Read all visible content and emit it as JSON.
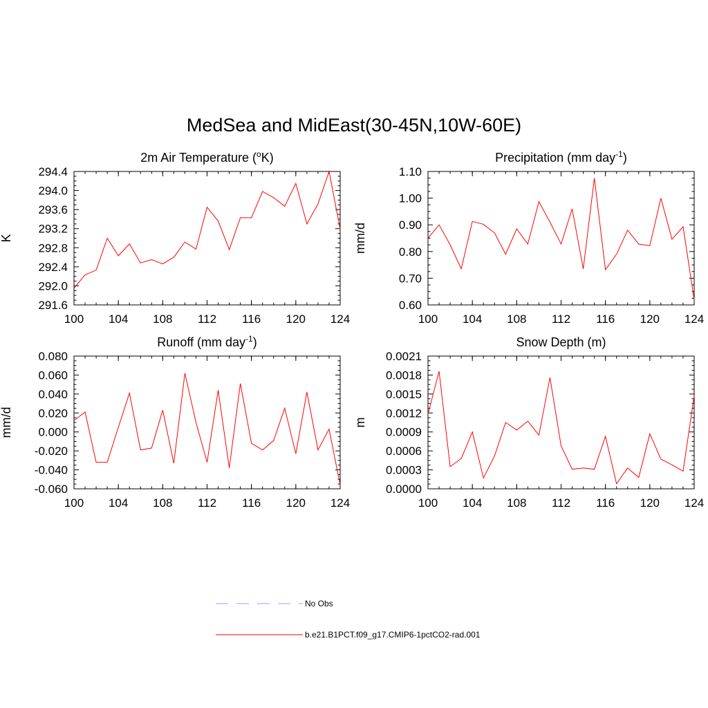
{
  "title": "MedSea and MidEast(30-45N,10W-60E)",
  "colors": {
    "model_line": "#ff0000",
    "obs_line": "#9999ff",
    "axis": "#000000"
  },
  "legend": {
    "items": [
      {
        "label": "No Obs",
        "style": "dashed",
        "color": "#9999ff"
      },
      {
        "label": "b.e21.B1PCT.f09_g17.CMIP6-1pctCO2-rad.001",
        "style": "solid",
        "color": "#ff0000"
      }
    ]
  },
  "chart_data": [
    {
      "type": "line",
      "title": "2m Air Temperature (°K)",
      "title_base": "2m Air Temperature (",
      "title_sup": "o",
      "title_tail": "K)",
      "xlabel": "",
      "ylabel": "K",
      "xlim": [
        100,
        124
      ],
      "ylim": [
        291.6,
        294.4
      ],
      "xticks": [
        "100",
        "104",
        "108",
        "112",
        "116",
        "120",
        "124"
      ],
      "yticks": [
        "291.6",
        "292.0",
        "292.4",
        "292.8",
        "293.2",
        "293.6",
        "294.0",
        "294.4"
      ],
      "x": [
        100,
        101,
        102,
        103,
        104,
        105,
        106,
        107,
        108,
        109,
        110,
        111,
        112,
        113,
        114,
        115,
        116,
        117,
        118,
        119,
        120,
        121,
        122,
        123,
        124
      ],
      "series": [
        {
          "name": "b.e21.B1PCT.f09_g17.CMIP6-1pctCO2-rad.001",
          "values": [
            291.95,
            292.23,
            292.33,
            293.0,
            292.63,
            292.88,
            292.48,
            292.55,
            292.46,
            292.6,
            292.92,
            292.77,
            293.65,
            293.36,
            292.76,
            293.43,
            293.43,
            293.98,
            293.85,
            293.67,
            294.15,
            293.3,
            293.72,
            294.4,
            293.19
          ]
        }
      ]
    },
    {
      "type": "line",
      "title": "Precipitation (mm day-1)",
      "title_base": "Precipitation (mm day",
      "title_sup": "-1",
      "title_tail": ")",
      "xlabel": "",
      "ylabel": "mm/d",
      "xlim": [
        100,
        124
      ],
      "ylim": [
        0.6,
        1.1
      ],
      "xticks": [
        "100",
        "104",
        "108",
        "112",
        "116",
        "120",
        "124"
      ],
      "yticks": [
        "0.60",
        "0.70",
        "0.80",
        "0.90",
        "1.00",
        "1.10"
      ],
      "x": [
        100,
        101,
        102,
        103,
        104,
        105,
        106,
        107,
        108,
        109,
        110,
        111,
        112,
        113,
        114,
        115,
        116,
        117,
        118,
        119,
        120,
        121,
        122,
        123,
        124
      ],
      "series": [
        {
          "name": "b.e21.B1PCT.f09_g17.CMIP6-1pctCO2-rad.001",
          "values": [
            0.85,
            0.9,
            0.825,
            0.735,
            0.913,
            0.902,
            0.87,
            0.79,
            0.885,
            0.828,
            0.987,
            0.91,
            0.828,
            0.96,
            0.735,
            1.075,
            0.732,
            0.79,
            0.88,
            0.828,
            0.822,
            1.0,
            0.846,
            0.893,
            0.62
          ]
        }
      ]
    },
    {
      "type": "line",
      "title": "Runoff (mm day-1)",
      "title_base": "Runoff (mm day",
      "title_sup": "-1",
      "title_tail": ")",
      "xlabel": "",
      "ylabel": "mm/d",
      "xlim": [
        100,
        124
      ],
      "ylim": [
        -0.06,
        0.08
      ],
      "xticks": [
        "100",
        "104",
        "108",
        "112",
        "116",
        "120",
        "124"
      ],
      "yticks": [
        "-0.060",
        "-0.040",
        "-0.020",
        "0.000",
        "0.020",
        "0.040",
        "0.060",
        "0.080"
      ],
      "x": [
        100,
        101,
        102,
        103,
        104,
        105,
        106,
        107,
        108,
        109,
        110,
        111,
        112,
        113,
        114,
        115,
        116,
        117,
        118,
        119,
        120,
        121,
        122,
        123,
        124
      ],
      "series": [
        {
          "name": "b.e21.B1PCT.f09_g17.CMIP6-1pctCO2-rad.001",
          "values": [
            0.012,
            0.021,
            -0.032,
            -0.032,
            0.005,
            0.041,
            -0.019,
            -0.017,
            0.023,
            -0.033,
            0.062,
            0.01,
            -0.032,
            0.044,
            -0.038,
            0.051,
            -0.012,
            -0.019,
            -0.009,
            0.025,
            -0.023,
            0.042,
            -0.019,
            0.003,
            -0.056
          ]
        }
      ]
    },
    {
      "type": "line",
      "title": "Snow Depth (m)",
      "title_base": "Snow Depth (m)",
      "title_sup": "",
      "title_tail": "",
      "xlabel": "",
      "ylabel": "m",
      "xlim": [
        100,
        124
      ],
      "ylim": [
        0.0,
        0.0021
      ],
      "xticks": [
        "100",
        "104",
        "108",
        "112",
        "116",
        "120",
        "124"
      ],
      "yticks": [
        "0.0000",
        "0.0003",
        "0.0006",
        "0.0009",
        "0.0012",
        "0.0015",
        "0.0018",
        "0.0021"
      ],
      "x": [
        100,
        101,
        102,
        103,
        104,
        105,
        106,
        107,
        108,
        109,
        110,
        111,
        112,
        113,
        114,
        115,
        116,
        117,
        118,
        119,
        120,
        121,
        122,
        123,
        124
      ],
      "series": [
        {
          "name": "b.e21.B1PCT.f09_g17.CMIP6-1pctCO2-rad.001",
          "values": [
            0.00118,
            0.00186,
            0.00035,
            0.00048,
            0.0009,
            0.00017,
            0.00052,
            0.00105,
            0.00093,
            0.00107,
            0.00085,
            0.00176,
            0.00068,
            0.00031,
            0.00033,
            0.00031,
            0.00083,
            8e-05,
            0.00033,
            0.00018,
            0.00087,
            0.00047,
            0.00038,
            0.00028,
            0.00147
          ]
        }
      ]
    }
  ]
}
